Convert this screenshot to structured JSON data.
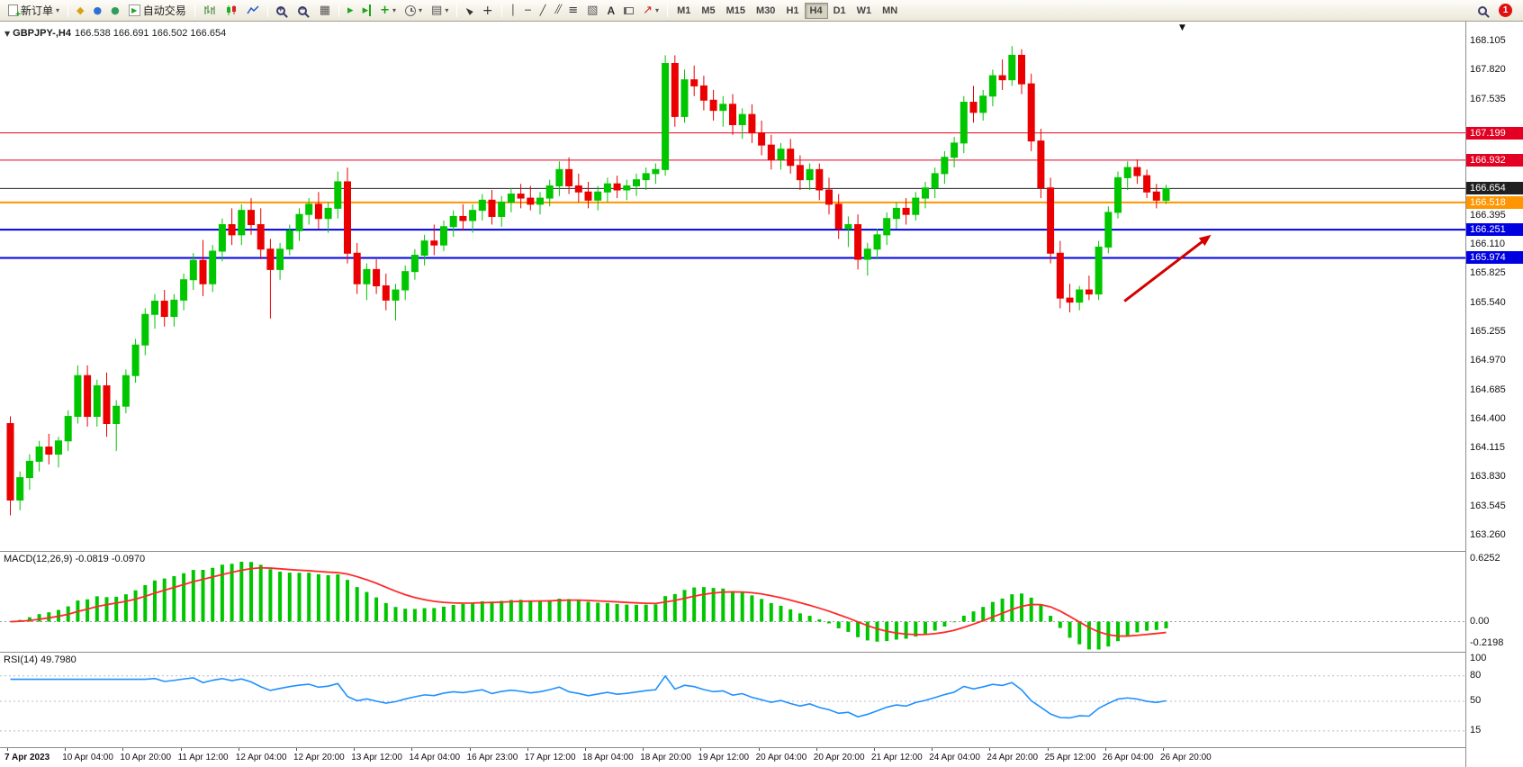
{
  "toolbar": {
    "new_order_label": "新订单",
    "auto_trading_label": "自动交易",
    "timeframes": [
      "M1",
      "M5",
      "M15",
      "M30",
      "H1",
      "H4",
      "D1",
      "W1",
      "MN"
    ],
    "active_timeframe": "H4",
    "notification_count": "1",
    "text_tool_label": "A"
  },
  "icons": {
    "new-order-icon": "document-plus",
    "market-watch-icon": "◆",
    "data-window-icon": "●",
    "navigator-icon": "●",
    "auto-trading-icon": "▶",
    "bars-chart-icon": "ohlc-bars",
    "candles-chart-icon": "candles",
    "line-chart-icon": "polyline",
    "zoom-in-icon": "magnifier-plus",
    "zoom-out-icon": "magnifier-minus",
    "tile-windows-icon": "▦",
    "auto-scroll-icon": "▸",
    "chart-shift-icon": "▸|",
    "indicators-icon": "+",
    "periods-icon": "clock",
    "templates-icon": "▤",
    "cursor-icon": "arrow-pointer",
    "crosshair-icon": "+",
    "vertical-line-icon": "│",
    "horizontal-line-icon": "─",
    "trendline-icon": "╱",
    "channel-icon": "╱╱",
    "fibonacci-icon": "≡",
    "shapes-icon": "▧",
    "label-icon": "flag",
    "arrows-icon": "↗",
    "search-icon": "magnifier",
    "chevron-down-icon": "▾",
    "one-click-trading-toggle": "▼",
    "chart-shift-marker": "▼"
  },
  "chart": {
    "title": "GBPJPY-,H4",
    "ohlc": "166.538 166.691 166.502 166.654",
    "price_axis_labels": [
      "168.105",
      "167.820",
      "167.535",
      "166.395",
      "166.110",
      "165.825",
      "165.540",
      "165.255",
      "164.970",
      "164.685",
      "164.400",
      "164.115",
      "163.830",
      "163.545",
      "163.260"
    ]
  },
  "macd_panel": {
    "name": "MACD(12,26,9)",
    "values": "-0.0819 -0.0970",
    "axis_labels": [
      "0.6252",
      "0.00",
      "-0.2198"
    ]
  },
  "rsi_panel": {
    "name": "RSI(14)",
    "value": "49.7980",
    "axis_labels": [
      "100",
      "80",
      "50",
      "15"
    ]
  },
  "time_axis": [
    "7 Apr 2023",
    "10 Apr 04:00",
    "10 Apr 20:00",
    "11 Apr 12:00",
    "12 Apr 04:00",
    "12 Apr 20:00",
    "13 Apr 12:00",
    "14 Apr 04:00",
    "16 Apr 23:00",
    "17 Apr 12:00",
    "18 Apr 04:00",
    "18 Apr 20:00",
    "19 Apr 12:00",
    "20 Apr 04:00",
    "20 Apr 20:00",
    "21 Apr 12:00",
    "24 Apr 04:00",
    "24 Apr 20:00",
    "25 Apr 12:00",
    "26 Apr 04:00",
    "26 Apr 20:00"
  ],
  "chart_data": {
    "type": "candlestick",
    "symbol": "GBPJPY-",
    "period": "H4",
    "price_range": [
      163.26,
      168.105
    ],
    "label_step": 6,
    "current_ohlc": [
      166.538,
      166.691,
      166.502,
      166.654
    ],
    "colors": {
      "up": "#00C600",
      "down": "#EA0000",
      "macd_histogram": "#00C600",
      "macd_signal": "#FF2A2A",
      "rsi_line": "#1E90FF",
      "level_red": "#E30022",
      "level_blue": "#0000E0",
      "level_orange": "#FF9500",
      "current_price": "#202020"
    },
    "levels": [
      {
        "price": 167.199,
        "label": "167.199",
        "color": "#E30022",
        "width": 1
      },
      {
        "price": 166.932,
        "label": "166.932",
        "color": "#E30022",
        "width": 1
      },
      {
        "price": 166.654,
        "label": "166.654",
        "color": "#202020",
        "width": 1
      },
      {
        "price": 166.518,
        "label": "166.518",
        "color": "#FF9500",
        "width": 2
      },
      {
        "price": 166.251,
        "label": "166.251",
        "color": "#0000E0",
        "width": 2
      },
      {
        "price": 165.974,
        "label": "165.974",
        "color": "#0000E0",
        "width": 2
      }
    ],
    "arrow_annotation": {
      "from": {
        "index": 116,
        "price": 165.55
      },
      "to": {
        "index": 125,
        "price": 166.2
      },
      "color": "#D40000"
    },
    "indicators": [
      {
        "type": "MACD",
        "params": [
          12,
          26,
          9
        ],
        "values": [
          -0.0819,
          -0.097
        ],
        "scale": [
          -0.2198,
          0.6252
        ]
      },
      {
        "type": "RSI",
        "params": [
          14
        ],
        "value": 49.798,
        "levels": [
          80,
          50,
          15
        ],
        "scale": [
          0,
          100
        ]
      }
    ],
    "candles": [
      [
        164.35,
        164.42,
        163.45,
        163.6
      ],
      [
        163.6,
        163.88,
        163.5,
        163.82
      ],
      [
        163.82,
        164.05,
        163.7,
        163.98
      ],
      [
        163.98,
        164.18,
        163.88,
        164.12
      ],
      [
        164.12,
        164.25,
        163.95,
        164.05
      ],
      [
        164.05,
        164.22,
        163.92,
        164.18
      ],
      [
        164.18,
        164.48,
        164.08,
        164.42
      ],
      [
        164.42,
        164.92,
        164.35,
        164.82
      ],
      [
        164.82,
        164.92,
        164.32,
        164.42
      ],
      [
        164.42,
        164.78,
        164.32,
        164.72
      ],
      [
        164.72,
        164.85,
        164.22,
        164.35
      ],
      [
        164.35,
        164.58,
        164.08,
        164.52
      ],
      [
        164.52,
        164.88,
        164.45,
        164.82
      ],
      [
        164.82,
        165.18,
        164.75,
        165.12
      ],
      [
        165.12,
        165.48,
        165.02,
        165.42
      ],
      [
        165.42,
        165.62,
        165.28,
        165.55
      ],
      [
        165.55,
        165.66,
        165.3,
        165.4
      ],
      [
        165.4,
        165.62,
        165.3,
        165.56
      ],
      [
        165.56,
        165.82,
        165.46,
        165.76
      ],
      [
        165.76,
        166.02,
        165.66,
        165.95
      ],
      [
        165.95,
        166.15,
        165.6,
        165.72
      ],
      [
        165.72,
        166.1,
        165.64,
        166.04
      ],
      [
        166.04,
        166.36,
        165.94,
        166.3
      ],
      [
        166.3,
        166.46,
        166.1,
        166.2
      ],
      [
        166.2,
        166.5,
        166.1,
        166.44
      ],
      [
        166.44,
        166.56,
        166.2,
        166.3
      ],
      [
        166.3,
        166.46,
        165.96,
        166.06
      ],
      [
        166.06,
        166.16,
        165.38,
        165.86
      ],
      [
        165.86,
        166.12,
        165.76,
        166.06
      ],
      [
        166.06,
        166.3,
        166.0,
        166.24
      ],
      [
        166.24,
        166.46,
        166.14,
        166.4
      ],
      [
        166.4,
        166.56,
        166.3,
        166.5
      ],
      [
        166.5,
        166.62,
        166.26,
        166.36
      ],
      [
        166.36,
        166.52,
        166.22,
        166.46
      ],
      [
        166.46,
        166.82,
        166.36,
        166.72
      ],
      [
        166.72,
        166.86,
        165.92,
        166.02
      ],
      [
        166.02,
        166.12,
        165.62,
        165.72
      ],
      [
        165.72,
        165.92,
        165.56,
        165.86
      ],
      [
        165.86,
        165.96,
        165.62,
        165.7
      ],
      [
        165.7,
        165.82,
        165.46,
        165.56
      ],
      [
        165.56,
        165.72,
        165.36,
        165.66
      ],
      [
        165.66,
        165.9,
        165.56,
        165.84
      ],
      [
        165.84,
        166.06,
        165.76,
        166.0
      ],
      [
        166.0,
        166.2,
        165.9,
        166.14
      ],
      [
        166.14,
        166.3,
        166.0,
        166.1
      ],
      [
        166.1,
        166.34,
        166.04,
        166.28
      ],
      [
        166.28,
        166.44,
        166.18,
        166.38
      ],
      [
        166.38,
        166.5,
        166.24,
        166.34
      ],
      [
        166.34,
        166.5,
        166.22,
        166.44
      ],
      [
        166.44,
        166.6,
        166.34,
        166.54
      ],
      [
        166.54,
        166.64,
        166.3,
        166.38
      ],
      [
        166.38,
        166.58,
        166.28,
        166.52
      ],
      [
        166.52,
        166.66,
        166.42,
        166.6
      ],
      [
        166.6,
        166.7,
        166.46,
        166.56
      ],
      [
        166.56,
        166.68,
        166.44,
        166.5
      ],
      [
        166.5,
        166.62,
        166.4,
        166.56
      ],
      [
        166.56,
        166.74,
        166.48,
        166.68
      ],
      [
        166.68,
        166.92,
        166.58,
        166.84
      ],
      [
        166.84,
        166.96,
        166.6,
        166.68
      ],
      [
        166.68,
        166.8,
        166.52,
        166.62
      ],
      [
        166.62,
        166.72,
        166.46,
        166.54
      ],
      [
        166.54,
        166.68,
        166.44,
        166.62
      ],
      [
        166.62,
        166.76,
        166.52,
        166.7
      ],
      [
        166.7,
        166.78,
        166.56,
        166.64
      ],
      [
        166.64,
        166.74,
        166.54,
        166.68
      ],
      [
        166.68,
        166.8,
        166.58,
        166.74
      ],
      [
        166.74,
        166.86,
        166.64,
        166.8
      ],
      [
        166.8,
        166.9,
        166.7,
        166.84
      ],
      [
        166.84,
        167.96,
        166.78,
        167.88
      ],
      [
        167.88,
        167.96,
        167.26,
        167.36
      ],
      [
        167.36,
        167.82,
        167.3,
        167.72
      ],
      [
        167.72,
        167.86,
        167.56,
        167.66
      ],
      [
        167.66,
        167.76,
        167.42,
        167.52
      ],
      [
        167.52,
        167.62,
        167.32,
        167.42
      ],
      [
        167.42,
        167.56,
        167.26,
        167.48
      ],
      [
        167.48,
        167.58,
        167.18,
        167.28
      ],
      [
        167.28,
        167.44,
        167.14,
        167.38
      ],
      [
        167.38,
        167.48,
        167.1,
        167.2
      ],
      [
        167.2,
        167.32,
        166.98,
        167.08
      ],
      [
        167.08,
        167.18,
        166.84,
        166.94
      ],
      [
        166.94,
        167.1,
        166.84,
        167.04
      ],
      [
        167.04,
        167.14,
        166.8,
        166.88
      ],
      [
        166.88,
        166.98,
        166.64,
        166.74
      ],
      [
        166.74,
        166.9,
        166.64,
        166.84
      ],
      [
        166.84,
        166.9,
        166.54,
        166.64
      ],
      [
        166.64,
        166.76,
        166.4,
        166.5
      ],
      [
        166.5,
        166.6,
        166.16,
        166.26
      ],
      [
        166.26,
        166.38,
        166.08,
        166.3
      ],
      [
        166.3,
        166.4,
        165.86,
        165.96
      ],
      [
        165.96,
        166.12,
        165.8,
        166.06
      ],
      [
        166.06,
        166.26,
        165.96,
        166.2
      ],
      [
        166.2,
        166.42,
        166.1,
        166.36
      ],
      [
        166.36,
        166.52,
        166.26,
        166.46
      ],
      [
        166.46,
        166.56,
        166.3,
        166.4
      ],
      [
        166.4,
        166.62,
        166.34,
        166.56
      ],
      [
        166.56,
        166.72,
        166.46,
        166.66
      ],
      [
        166.66,
        166.86,
        166.56,
        166.8
      ],
      [
        166.8,
        167.02,
        166.7,
        166.96
      ],
      [
        166.96,
        167.16,
        166.86,
        167.1
      ],
      [
        167.1,
        167.56,
        167.0,
        167.5
      ],
      [
        167.5,
        167.66,
        167.3,
        167.4
      ],
      [
        167.4,
        167.62,
        167.32,
        167.56
      ],
      [
        167.56,
        167.82,
        167.46,
        167.76
      ],
      [
        167.76,
        167.92,
        167.62,
        167.72
      ],
      [
        167.72,
        168.05,
        167.66,
        167.96
      ],
      [
        167.96,
        168.02,
        167.58,
        167.68
      ],
      [
        167.68,
        167.78,
        167.02,
        167.12
      ],
      [
        167.12,
        167.24,
        166.56,
        166.66
      ],
      [
        166.66,
        166.76,
        165.92,
        166.02
      ],
      [
        166.02,
        166.14,
        165.48,
        165.58
      ],
      [
        165.58,
        165.72,
        165.44,
        165.54
      ],
      [
        165.54,
        165.7,
        165.46,
        165.66
      ],
      [
        165.66,
        165.8,
        165.56,
        165.62
      ],
      [
        165.62,
        166.14,
        165.56,
        166.08
      ],
      [
        166.08,
        166.48,
        166.02,
        166.42
      ],
      [
        166.42,
        166.82,
        166.36,
        166.76
      ],
      [
        166.76,
        166.92,
        166.64,
        166.86
      ],
      [
        166.86,
        166.94,
        166.7,
        166.78
      ],
      [
        166.78,
        166.84,
        166.56,
        166.62
      ],
      [
        166.62,
        166.7,
        166.46,
        166.54
      ],
      [
        166.538,
        166.691,
        166.502,
        166.654
      ]
    ]
  }
}
